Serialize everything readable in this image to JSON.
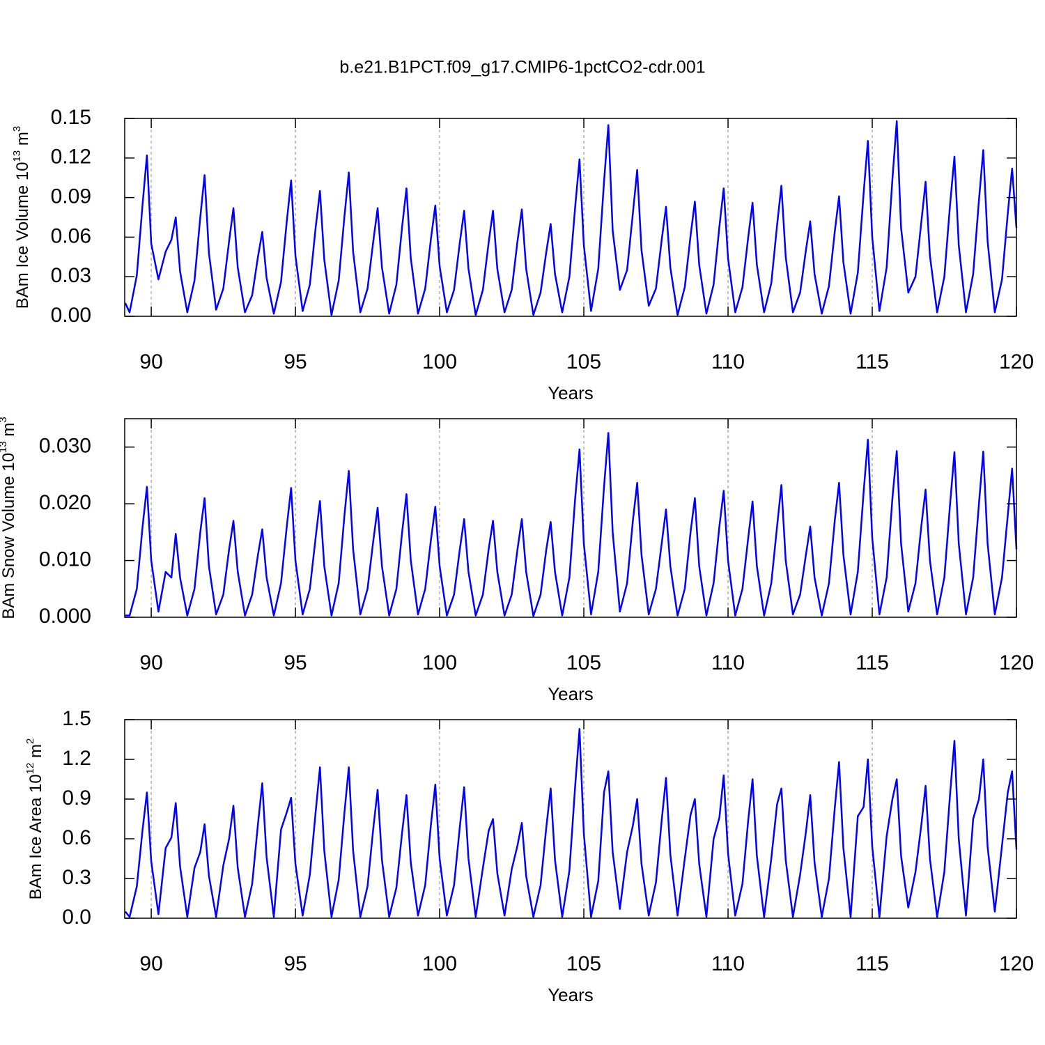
{
  "chart_data": [
    {
      "type": "line",
      "title": "b.e21.B1PCT.f09_g17.CMIP6-1pctCO2-cdr.001",
      "ylabel": [
        "BAm Ice Volume 10",
        "13",
        " m",
        "3"
      ],
      "xlabel": "Years",
      "x": [
        89.1,
        89.25,
        89.5,
        89.7,
        89.85,
        90,
        90.25,
        90.5,
        90.7,
        90.85,
        91,
        91.25,
        91.5,
        91.7,
        91.85,
        92,
        92.25,
        92.5,
        92.7,
        92.85,
        93,
        93.25,
        93.5,
        93.7,
        93.85,
        94,
        94.25,
        94.5,
        94.7,
        94.85,
        95,
        95.25,
        95.5,
        95.7,
        95.85,
        96,
        96.25,
        96.5,
        96.7,
        96.85,
        97,
        97.25,
        97.5,
        97.7,
        97.85,
        98,
        98.25,
        98.5,
        98.7,
        98.85,
        99,
        99.25,
        99.5,
        99.7,
        99.85,
        100,
        100.25,
        100.5,
        100.7,
        100.85,
        101,
        101.25,
        101.5,
        101.7,
        101.85,
        102,
        102.25,
        102.5,
        102.7,
        102.85,
        103,
        103.25,
        103.5,
        103.7,
        103.85,
        104,
        104.25,
        104.5,
        104.7,
        104.85,
        105,
        105.25,
        105.5,
        105.7,
        105.85,
        106,
        106.25,
        106.5,
        106.7,
        106.85,
        107,
        107.25,
        107.5,
        107.7,
        107.85,
        108,
        108.25,
        108.5,
        108.7,
        108.85,
        109,
        109.25,
        109.5,
        109.7,
        109.85,
        110,
        110.25,
        110.5,
        110.7,
        110.85,
        111,
        111.25,
        111.5,
        111.7,
        111.85,
        112,
        112.25,
        112.5,
        112.7,
        112.85,
        113,
        113.25,
        113.5,
        113.7,
        113.85,
        114,
        114.25,
        114.5,
        114.7,
        114.85,
        115,
        115.25,
        115.5,
        115.7,
        115.85,
        116,
        116.25,
        116.5,
        116.7,
        116.85,
        117,
        117.25,
        117.5,
        117.7,
        117.85,
        118,
        118.25,
        118.5,
        118.7,
        118.85,
        119,
        119.25,
        119.5,
        119.7,
        119.85,
        120
      ],
      "series": [
        {
          "color": "#0000ff",
          "values": [
            0.01,
            0.003,
            0.031,
            0.085,
            0.122,
            0.055,
            0.028,
            0.049,
            0.058,
            0.075,
            0.034,
            0.003,
            0.027,
            0.075,
            0.107,
            0.048,
            0.005,
            0.021,
            0.057,
            0.082,
            0.037,
            0.003,
            0.016,
            0.045,
            0.064,
            0.029,
            0.002,
            0.026,
            0.072,
            0.103,
            0.046,
            0.004,
            0.024,
            0.067,
            0.095,
            0.043,
            0.001,
            0.027,
            0.076,
            0.109,
            0.049,
            0.003,
            0.021,
            0.057,
            0.082,
            0.037,
            0.002,
            0.024,
            0.068,
            0.097,
            0.044,
            0.002,
            0.021,
            0.059,
            0.084,
            0.038,
            0.003,
            0.02,
            0.056,
            0.08,
            0.036,
            0.001,
            0.02,
            0.056,
            0.08,
            0.036,
            0.003,
            0.02,
            0.057,
            0.081,
            0.036,
            0.001,
            0.018,
            0.049,
            0.07,
            0.032,
            0.003,
            0.03,
            0.083,
            0.119,
            0.054,
            0.004,
            0.036,
            0.102,
            0.145,
            0.065,
            0.02,
            0.035,
            0.078,
            0.111,
            0.05,
            0.008,
            0.021,
            0.058,
            0.083,
            0.037,
            0.001,
            0.022,
            0.061,
            0.087,
            0.039,
            0.002,
            0.024,
            0.068,
            0.097,
            0.044,
            0.003,
            0.022,
            0.06,
            0.086,
            0.039,
            0.003,
            0.025,
            0.069,
            0.099,
            0.045,
            0.003,
            0.018,
            0.05,
            0.072,
            0.032,
            0.002,
            0.023,
            0.064,
            0.091,
            0.041,
            0.002,
            0.033,
            0.093,
            0.133,
            0.06,
            0.004,
            0.037,
            0.104,
            0.148,
            0.067,
            0.018,
            0.03,
            0.071,
            0.102,
            0.046,
            0.003,
            0.03,
            0.085,
            0.121,
            0.054,
            0.003,
            0.032,
            0.088,
            0.126,
            0.057,
            0.003,
            0.028,
            0.078,
            0.112,
            0.067
          ]
        }
      ],
      "xlim": [
        89.08,
        120
      ],
      "ylim": [
        0,
        0.15
      ],
      "xticks": [
        90,
        95,
        100,
        105,
        110,
        115,
        120
      ],
      "yticks": [
        {
          "value": 0,
          "label": "0.00"
        },
        {
          "value": 0.03,
          "label": "0.03"
        },
        {
          "value": 0.06,
          "label": "0.06"
        },
        {
          "value": 0.09,
          "label": "0.09"
        },
        {
          "value": 0.12,
          "label": "0.12"
        },
        {
          "value": 0.15,
          "label": "0.15"
        }
      ],
      "grid": "x"
    },
    {
      "type": "line",
      "ylabel": [
        "BAm Snow Volume 10",
        "13",
        " m",
        "3"
      ],
      "xlabel": "Years",
      "x": [
        89.1,
        89.25,
        89.5,
        89.7,
        89.85,
        90,
        90.25,
        90.5,
        90.7,
        90.85,
        91,
        91.25,
        91.5,
        91.7,
        91.85,
        92,
        92.25,
        92.5,
        92.7,
        92.85,
        93,
        93.25,
        93.5,
        93.7,
        93.85,
        94,
        94.25,
        94.5,
        94.7,
        94.85,
        95,
        95.25,
        95.5,
        95.7,
        95.85,
        96,
        96.25,
        96.5,
        96.7,
        96.85,
        97,
        97.25,
        97.5,
        97.7,
        97.85,
        98,
        98.25,
        98.5,
        98.7,
        98.85,
        99,
        99.25,
        99.5,
        99.7,
        99.85,
        100,
        100.25,
        100.5,
        100.7,
        100.85,
        101,
        101.25,
        101.5,
        101.7,
        101.85,
        102,
        102.25,
        102.5,
        102.7,
        102.85,
        103,
        103.25,
        103.5,
        103.7,
        103.85,
        104,
        104.25,
        104.5,
        104.7,
        104.85,
        105,
        105.25,
        105.5,
        105.7,
        105.85,
        106,
        106.25,
        106.5,
        106.7,
        106.85,
        107,
        107.25,
        107.5,
        107.7,
        107.85,
        108,
        108.25,
        108.5,
        108.7,
        108.85,
        109,
        109.25,
        109.5,
        109.7,
        109.85,
        110,
        110.25,
        110.5,
        110.7,
        110.85,
        111,
        111.25,
        111.5,
        111.7,
        111.85,
        112,
        112.25,
        112.5,
        112.7,
        112.85,
        113,
        113.25,
        113.5,
        113.7,
        113.85,
        114,
        114.25,
        114.5,
        114.7,
        114.85,
        115,
        115.25,
        115.5,
        115.7,
        115.85,
        116,
        116.25,
        116.5,
        116.7,
        116.85,
        117,
        117.25,
        117.5,
        117.7,
        117.85,
        118,
        118.25,
        118.5,
        118.7,
        118.85,
        119,
        119.25,
        119.5,
        119.7,
        119.85,
        120
      ],
      "series": [
        {
          "color": "#0000ff",
          "values": [
            0.0003,
            0.0003,
            0.005,
            0.016,
            0.023,
            0.01,
            0.001,
            0.008,
            0.007,
            0.0147,
            0.007,
            0.0003,
            0.005,
            0.015,
            0.021,
            0.009,
            0.0005,
            0.004,
            0.012,
            0.017,
            0.008,
            0.0003,
            0.004,
            0.011,
            0.0155,
            0.007,
            0.0003,
            0.006,
            0.016,
            0.0228,
            0.01,
            0.0005,
            0.005,
            0.014,
            0.0205,
            0.009,
            0.0003,
            0.006,
            0.018,
            0.0258,
            0.012,
            0.0005,
            0.005,
            0.0135,
            0.0193,
            0.009,
            0.0003,
            0.005,
            0.015,
            0.0217,
            0.01,
            0.0005,
            0.005,
            0.0137,
            0.0195,
            0.009,
            0.0003,
            0.004,
            0.012,
            0.0173,
            0.008,
            0.0003,
            0.004,
            0.012,
            0.017,
            0.008,
            0.0003,
            0.004,
            0.012,
            0.0173,
            0.008,
            0.0002,
            0.004,
            0.012,
            0.0168,
            0.008,
            0.0003,
            0.007,
            0.021,
            0.0296,
            0.013,
            0.0005,
            0.008,
            0.023,
            0.0325,
            0.015,
            0.001,
            0.006,
            0.017,
            0.0237,
            0.011,
            0.0005,
            0.005,
            0.013,
            0.019,
            0.009,
            0.0003,
            0.005,
            0.015,
            0.021,
            0.009,
            0.0003,
            0.006,
            0.016,
            0.0223,
            0.01,
            0.0003,
            0.005,
            0.014,
            0.0204,
            0.009,
            0.0003,
            0.006,
            0.016,
            0.0233,
            0.01,
            0.0005,
            0.004,
            0.011,
            0.016,
            0.007,
            0.0003,
            0.006,
            0.017,
            0.0237,
            0.011,
            0.0005,
            0.008,
            0.022,
            0.0313,
            0.014,
            0.0005,
            0.007,
            0.021,
            0.0293,
            0.013,
            0.001,
            0.006,
            0.016,
            0.0225,
            0.01,
            0.0005,
            0.007,
            0.02,
            0.0291,
            0.013,
            0.0005,
            0.007,
            0.02,
            0.0292,
            0.013,
            0.0005,
            0.007,
            0.018,
            0.0262,
            0.012
          ]
        }
      ],
      "xlim": [
        89.08,
        120
      ],
      "ylim": [
        0,
        0.035
      ],
      "xticks": [
        90,
        95,
        100,
        105,
        110,
        115,
        120
      ],
      "yticks": [
        {
          "value": 0,
          "label": "0.000"
        },
        {
          "value": 0.01,
          "label": "0.010"
        },
        {
          "value": 0.02,
          "label": "0.020"
        },
        {
          "value": 0.03,
          "label": "0.030"
        }
      ],
      "grid": "x"
    },
    {
      "type": "line",
      "ylabel": [
        "BAm Ice Area 10",
        "12",
        " m",
        "2"
      ],
      "xlabel": "Years",
      "x": [
        89.1,
        89.25,
        89.5,
        89.7,
        89.85,
        90,
        90.25,
        90.5,
        90.7,
        90.85,
        91,
        91.25,
        91.5,
        91.7,
        91.85,
        92,
        92.25,
        92.5,
        92.7,
        92.85,
        93,
        93.25,
        93.5,
        93.7,
        93.85,
        94,
        94.25,
        94.5,
        94.7,
        94.85,
        95,
        95.25,
        95.5,
        95.7,
        95.85,
        96,
        96.25,
        96.5,
        96.7,
        96.85,
        97,
        97.25,
        97.5,
        97.7,
        97.85,
        98,
        98.25,
        98.5,
        98.7,
        98.85,
        99,
        99.25,
        99.5,
        99.7,
        99.85,
        100,
        100.25,
        100.5,
        100.7,
        100.85,
        101,
        101.25,
        101.5,
        101.7,
        101.85,
        102,
        102.25,
        102.5,
        102.7,
        102.85,
        103,
        103.25,
        103.5,
        103.7,
        103.85,
        104,
        104.25,
        104.5,
        104.7,
        104.85,
        105,
        105.25,
        105.5,
        105.7,
        105.85,
        106,
        106.25,
        106.5,
        106.7,
        106.85,
        107,
        107.25,
        107.5,
        107.7,
        107.85,
        108,
        108.25,
        108.5,
        108.7,
        108.85,
        109,
        109.25,
        109.5,
        109.7,
        109.85,
        110,
        110.25,
        110.5,
        110.7,
        110.85,
        111,
        111.25,
        111.5,
        111.7,
        111.85,
        112,
        112.25,
        112.5,
        112.7,
        112.85,
        113,
        113.25,
        113.5,
        113.7,
        113.85,
        114,
        114.25,
        114.5,
        114.7,
        114.85,
        115,
        115.25,
        115.5,
        115.7,
        115.85,
        116,
        116.25,
        116.5,
        116.7,
        116.85,
        117,
        117.25,
        117.5,
        117.7,
        117.85,
        118,
        118.25,
        118.5,
        118.7,
        118.85,
        119,
        119.25,
        119.5,
        119.7,
        119.85,
        120
      ],
      "series": [
        {
          "color": "#0000ff",
          "values": [
            0.05,
            0.01,
            0.24,
            0.67,
            0.95,
            0.43,
            0.03,
            0.53,
            0.61,
            0.87,
            0.39,
            0.01,
            0.38,
            0.5,
            0.71,
            0.32,
            0.01,
            0.4,
            0.6,
            0.85,
            0.38,
            0.01,
            0.26,
            0.71,
            1.02,
            0.46,
            0.01,
            0.67,
            0.8,
            0.91,
            0.41,
            0.02,
            0.33,
            0.8,
            1.14,
            0.51,
            0.01,
            0.29,
            0.8,
            1.14,
            0.51,
            0.01,
            0.24,
            0.68,
            0.97,
            0.44,
            0.01,
            0.23,
            0.65,
            0.93,
            0.42,
            0.02,
            0.25,
            0.71,
            1.01,
            0.45,
            0.02,
            0.25,
            0.69,
            0.99,
            0.45,
            0.01,
            0.38,
            0.66,
            0.75,
            0.34,
            0.02,
            0.37,
            0.55,
            0.72,
            0.32,
            0.01,
            0.25,
            0.69,
            0.98,
            0.44,
            0.01,
            0.36,
            1.0,
            1.43,
            0.64,
            0.01,
            0.28,
            0.95,
            1.11,
            0.5,
            0.07,
            0.5,
            0.7,
            0.9,
            0.41,
            0.02,
            0.27,
            0.74,
            1.06,
            0.48,
            0.02,
            0.45,
            0.78,
            0.9,
            0.41,
            0.01,
            0.6,
            0.76,
            1.08,
            0.49,
            0.02,
            0.26,
            0.74,
            1.05,
            0.47,
            0.01,
            0.45,
            0.86,
            0.98,
            0.44,
            0.01,
            0.33,
            0.65,
            0.93,
            0.42,
            0.01,
            0.3,
            0.83,
            1.18,
            0.53,
            0.01,
            0.77,
            0.84,
            1.2,
            0.54,
            0.01,
            0.62,
            0.9,
            1.05,
            0.47,
            0.08,
            0.35,
            0.7,
            1.0,
            0.45,
            0.01,
            0.35,
            0.94,
            1.34,
            0.6,
            0.02,
            0.75,
            0.9,
            1.2,
            0.54,
            0.05,
            0.55,
            0.95,
            1.11,
            0.52
          ]
        }
      ],
      "xlim": [
        89.08,
        120
      ],
      "ylim": [
        0,
        1.5
      ],
      "xticks": [
        90,
        95,
        100,
        105,
        110,
        115,
        120
      ],
      "yticks": [
        {
          "value": 0,
          "label": "0.0"
        },
        0.3,
        0.6,
        0.9,
        1.2,
        1.5
      ],
      "grid": "x"
    }
  ]
}
